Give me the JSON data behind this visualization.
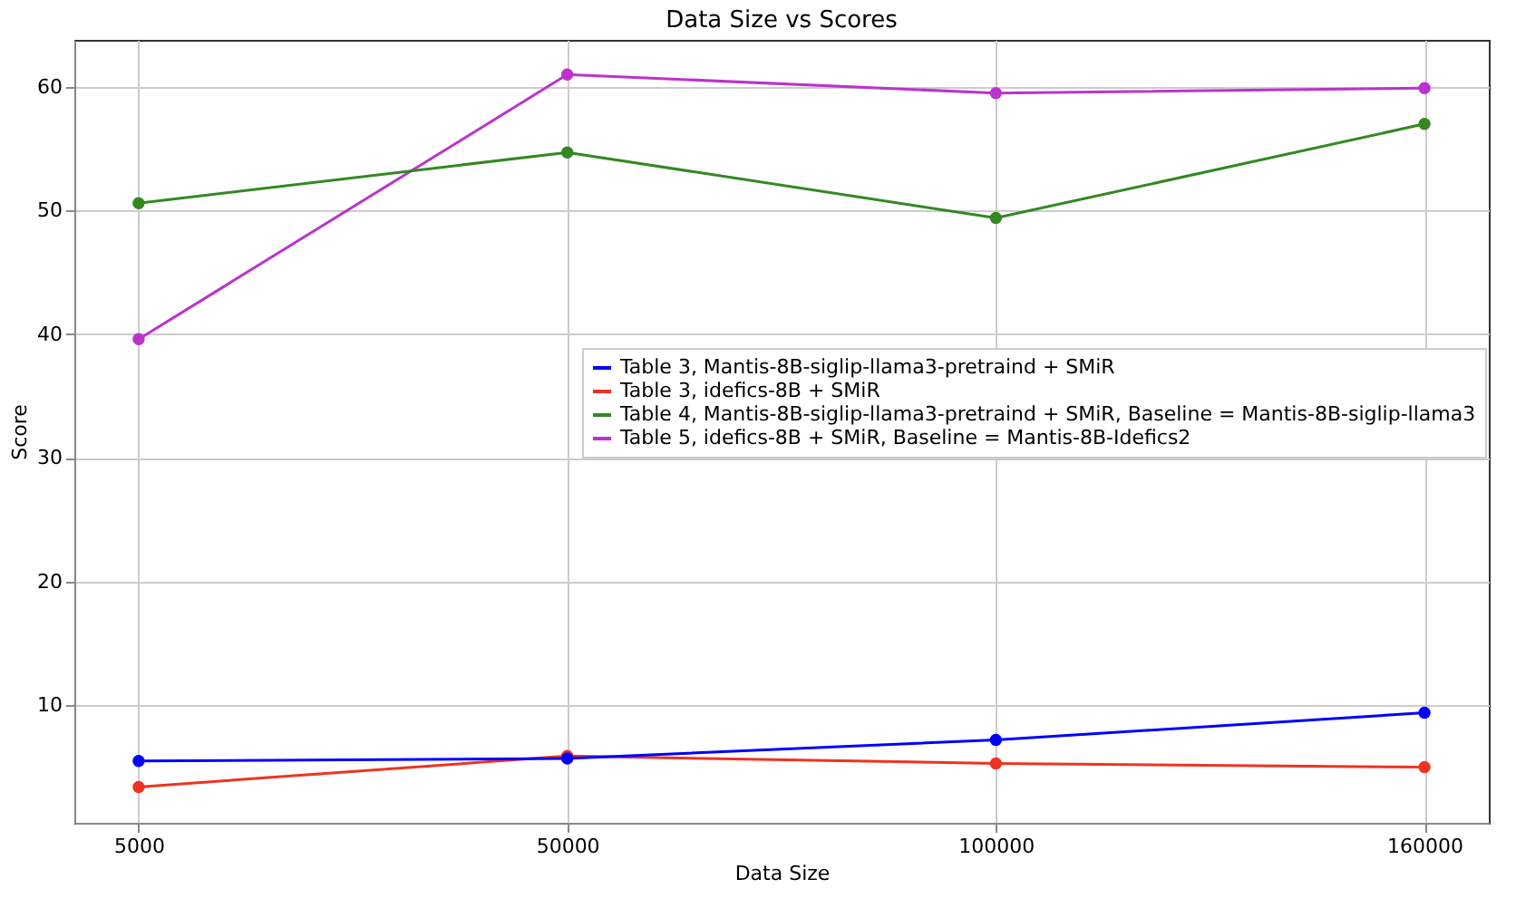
{
  "chart_data": {
    "type": "line",
    "title": "Data Size vs Scores",
    "xlabel": "Data Size",
    "ylabel": "Score",
    "categories": [
      "5000",
      "50000",
      "100000",
      "160000"
    ],
    "series": [
      {
        "name": "Table 3, Mantis-8B-siglip-llama3-pretraind + SMiR",
        "color": "#0000ff",
        "values": [
          5.5,
          5.7,
          7.2,
          9.4
        ]
      },
      {
        "name": "Table 3, idefics-8B + SMiR",
        "color": "#ee3322",
        "values": [
          3.4,
          5.9,
          5.3,
          5.0
        ]
      },
      {
        "name": "Table 4, Mantis-8B-siglip-llama3-pretraind + SMiR, Baseline = Mantis-8B-siglip-llama3",
        "color": "#338822",
        "values": [
          50.6,
          54.7,
          49.4,
          57.0
        ]
      },
      {
        "name": "Table 5, idefics-8B + SMiR, Baseline = Mantis-8B-Idefics2",
        "color": "#bb33cc",
        "values": [
          39.6,
          61.0,
          59.5,
          59.9
        ]
      }
    ],
    "ylim": [
      0.5,
      63.8
    ],
    "yticks": [
      10,
      20,
      30,
      40,
      50,
      60
    ],
    "grid": true,
    "legend": "right",
    "marker": "circle",
    "line_style": "solid"
  }
}
